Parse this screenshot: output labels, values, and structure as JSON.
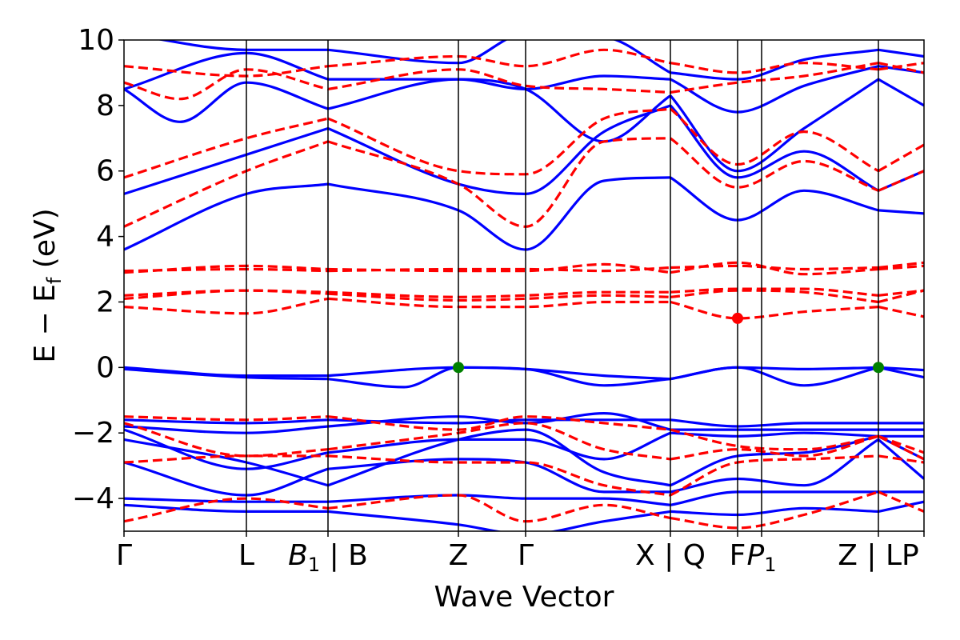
{
  "chart_data": {
    "type": "line",
    "xlabel": "Wave Vector",
    "ylabel": "E − E",
    "ylabel_sub": "f",
    "ylabel_unit": " (eV)",
    "ylim": [
      -5,
      10
    ],
    "yticks": [
      -4,
      -2,
      0,
      2,
      4,
      6,
      8,
      10
    ],
    "ytick_labels": [
      "−4",
      "−2",
      "0",
      "2",
      "4",
      "6",
      "8",
      "10"
    ],
    "xlim": [
      0,
      1
    ],
    "kpoints": [
      {
        "pos": 0.0,
        "label": "Γ"
      },
      {
        "pos": 0.153,
        "label": "L"
      },
      {
        "pos": 0.255,
        "label": "B",
        "sub": "1",
        "italic": true,
        "after": " | B"
      },
      {
        "pos": 0.418,
        "label": "Z"
      },
      {
        "pos": 0.502,
        "label": "Γ"
      },
      {
        "pos": 0.683,
        "label": "X | Q"
      },
      {
        "pos": 0.767,
        "label": "F"
      },
      {
        "pos": 0.797,
        "label": "P",
        "sub": "1",
        "italic": true
      },
      {
        "pos": 0.943,
        "label": "Z | LP"
      },
      {
        "pos": 1.0,
        "label": ""
      }
    ],
    "x_breaks": [
      0.255,
      0.683,
      0.943
    ],
    "grid": false,
    "colors": {
      "spin_up": "#0000ff",
      "spin_down": "#ff0000",
      "vbm": "#008000",
      "cbm": "#ff0000"
    },
    "series": [
      {
        "style": "solid",
        "color": "#0000ff",
        "bands": [
          {
            "x": [
              0,
              0.153,
              0.255,
              0.418,
              0.502,
              0.6,
              0.683,
              0.767,
              0.85,
              0.943,
              1.0
            ],
            "y": [
              0,
              -0.25,
              -0.25,
              0,
              -0.05,
              -0.25,
              -0.35,
              0,
              -0.05,
              0,
              -0.08
            ]
          },
          {
            "x": [
              0,
              0.153,
              0.255,
              0.35,
              0.418,
              0.502,
              0.6,
              0.683,
              0.767,
              0.85,
              0.943,
              1.0
            ],
            "y": [
              -0.05,
              -0.3,
              -0.35,
              -0.6,
              0,
              -0.05,
              -0.55,
              -0.35,
              0,
              -0.55,
              0,
              -0.3
            ]
          },
          {
            "x": [
              0,
              0.153,
              0.255,
              0.418,
              0.502,
              0.6,
              0.683,
              0.767,
              0.85,
              0.943,
              1.0
            ],
            "y": [
              3.6,
              5.3,
              5.6,
              4.8,
              3.6,
              5.7,
              5.8,
              4.5,
              5.4,
              4.8,
              4.7
            ]
          },
          {
            "x": [
              0,
              0.153,
              0.255,
              0.418,
              0.502,
              0.6,
              0.683,
              0.767,
              0.85,
              0.943,
              1.0
            ],
            "y": [
              5.3,
              6.5,
              7.3,
              5.6,
              5.3,
              7.2,
              8.0,
              5.8,
              6.6,
              5.4,
              6.0
            ]
          },
          {
            "x": [
              0,
              0.07,
              0.153,
              0.255,
              0.418,
              0.502,
              0.6,
              0.683,
              0.767,
              0.85,
              0.943,
              1.0
            ],
            "y": [
              8.5,
              7.5,
              8.7,
              7.9,
              8.8,
              8.5,
              6.9,
              8.3,
              6.0,
              7.3,
              8.8,
              8.0
            ]
          },
          {
            "x": [
              0,
              0.153,
              0.255,
              0.418,
              0.502,
              0.6,
              0.683,
              0.767,
              0.85,
              0.943,
              1.0
            ],
            "y": [
              8.5,
              9.6,
              8.8,
              8.8,
              8.5,
              8.9,
              8.8,
              7.8,
              8.6,
              9.2,
              9.0
            ]
          },
          {
            "x": [
              0,
              0.153,
              0.255,
              0.418,
              0.502,
              0.6,
              0.683,
              0.767,
              0.85,
              0.943,
              1.0
            ],
            "y": [
              10.2,
              9.7,
              9.7,
              9.3,
              10.2,
              10.1,
              9.0,
              8.8,
              9.4,
              9.7,
              9.5
            ]
          },
          {
            "x": [
              0,
              0.153,
              0.255,
              0.418,
              0.502,
              0.6,
              0.683,
              0.767,
              0.85,
              0.943,
              1.0
            ],
            "y": [
              -1.6,
              -1.7,
              -1.6,
              -1.7,
              -1.6,
              -1.6,
              -1.6,
              -1.8,
              -1.7,
              -1.7,
              -1.7
            ]
          },
          {
            "x": [
              0,
              0.153,
              0.255,
              0.418,
              0.502,
              0.6,
              0.683,
              0.767,
              0.85,
              0.943,
              1.0
            ],
            "y": [
              -1.8,
              -2.0,
              -1.8,
              -1.5,
              -1.7,
              -1.4,
              -1.9,
              -1.9,
              -1.9,
              -1.9,
              -1.9
            ]
          },
          {
            "x": [
              0,
              0.153,
              0.255,
              0.418,
              0.502,
              0.6,
              0.683,
              0.767,
              0.85,
              0.943,
              1.0
            ],
            "y": [
              -1.9,
              -3.1,
              -2.6,
              -2.2,
              -2.2,
              -2.8,
              -2.0,
              -2.1,
              -2.0,
              -2.1,
              -2.1
            ]
          },
          {
            "x": [
              0,
              0.153,
              0.255,
              0.418,
              0.502,
              0.6,
              0.683,
              0.767,
              0.85,
              0.943,
              1.0
            ],
            "y": [
              -2.2,
              -2.9,
              -3.6,
              -2.2,
              -1.9,
              -3.2,
              -3.6,
              -2.7,
              -2.6,
              -2.1,
              -2.8
            ]
          },
          {
            "x": [
              0,
              0.153,
              0.255,
              0.418,
              0.502,
              0.6,
              0.683,
              0.767,
              0.85,
              0.943,
              1.0
            ],
            "y": [
              -2.9,
              -3.9,
              -3.1,
              -2.8,
              -2.9,
              -3.8,
              -3.8,
              -3.4,
              -3.6,
              -2.2,
              -3.4
            ]
          },
          {
            "x": [
              0,
              0.153,
              0.255,
              0.418,
              0.502,
              0.6,
              0.683,
              0.767,
              0.85,
              0.943,
              1.0
            ],
            "y": [
              -4.0,
              -4.1,
              -4.1,
              -3.9,
              -4.0,
              -4.0,
              -4.2,
              -3.8,
              -3.8,
              -3.8,
              -3.8
            ]
          },
          {
            "x": [
              0,
              0.153,
              0.255,
              0.418,
              0.502,
              0.6,
              0.683,
              0.767,
              0.85,
              0.943,
              1.0
            ],
            "y": [
              -4.2,
              -4.4,
              -4.4,
              -4.8,
              -5.1,
              -4.7,
              -4.4,
              -4.5,
              -4.3,
              -4.4,
              -4.1
            ]
          }
        ]
      },
      {
        "style": "dashed",
        "color": "#ff0000",
        "bands": [
          {
            "x": [
              0,
              0.153,
              0.255,
              0.418,
              0.502,
              0.6,
              0.683,
              0.767,
              0.85,
              0.943,
              1.0
            ],
            "y": [
              1.85,
              1.65,
              2.1,
              1.85,
              1.85,
              2.0,
              2.0,
              1.5,
              1.7,
              1.85,
              1.55
            ]
          },
          {
            "x": [
              0,
              0.153,
              0.255,
              0.418,
              0.502,
              0.6,
              0.683,
              0.767,
              0.85,
              0.943,
              1.0
            ],
            "y": [
              2.1,
              2.35,
              2.25,
              2.05,
              2.1,
              2.2,
              2.15,
              2.35,
              2.3,
              2.0,
              2.35
            ]
          },
          {
            "x": [
              0,
              0.153,
              0.255,
              0.418,
              0.502,
              0.6,
              0.683,
              0.767,
              0.85,
              0.943,
              1.0
            ],
            "y": [
              2.2,
              2.35,
              2.3,
              2.15,
              2.2,
              2.3,
              2.3,
              2.4,
              2.4,
              2.2,
              2.35
            ]
          },
          {
            "x": [
              0,
              0.153,
              0.255,
              0.418,
              0.502,
              0.6,
              0.683,
              0.767,
              0.85,
              0.943,
              1.0
            ],
            "y": [
              2.9,
              3.1,
              3.0,
              2.95,
              2.95,
              3.15,
              2.9,
              3.2,
              2.85,
              3.0,
              3.1
            ]
          },
          {
            "x": [
              0,
              0.153,
              0.255,
              0.418,
              0.502,
              0.6,
              0.683,
              0.767,
              0.85,
              0.943,
              1.0
            ],
            "y": [
              2.95,
              3.0,
              2.95,
              3.0,
              3.0,
              2.95,
              3.05,
              3.1,
              3.0,
              3.05,
              3.2
            ]
          },
          {
            "x": [
              0,
              0.153,
              0.255,
              0.418,
              0.502,
              0.6,
              0.683,
              0.767,
              0.85,
              0.943,
              1.0
            ],
            "y": [
              4.3,
              6.0,
              6.9,
              5.6,
              4.3,
              6.9,
              7.0,
              5.5,
              6.3,
              5.4,
              6.0
            ]
          },
          {
            "x": [
              0,
              0.153,
              0.255,
              0.418,
              0.502,
              0.6,
              0.683,
              0.767,
              0.85,
              0.943,
              1.0
            ],
            "y": [
              5.8,
              7.0,
              7.6,
              6.0,
              5.9,
              7.6,
              7.9,
              6.2,
              7.2,
              6.0,
              6.8
            ]
          },
          {
            "x": [
              0,
              0.07,
              0.153,
              0.255,
              0.418,
              0.502,
              0.6,
              0.683,
              0.767,
              0.85,
              0.943,
              1.0
            ],
            "y": [
              8.7,
              8.2,
              9.1,
              8.5,
              9.1,
              8.6,
              8.5,
              8.4,
              8.7,
              8.9,
              9.3,
              9.0
            ]
          },
          {
            "x": [
              0,
              0.153,
              0.255,
              0.418,
              0.502,
              0.6,
              0.683,
              0.767,
              0.85,
              0.943,
              1.0
            ],
            "y": [
              9.2,
              8.9,
              9.2,
              9.5,
              9.2,
              9.7,
              9.3,
              9.0,
              9.3,
              9.1,
              9.3
            ]
          },
          {
            "x": [
              0,
              0.153,
              0.255,
              0.418,
              0.502,
              0.6,
              0.683,
              0.767,
              0.85,
              0.943,
              1.0
            ],
            "y": [
              -1.5,
              -1.6,
              -1.5,
              -1.9,
              -1.5,
              -1.7,
              -1.9,
              -2.4,
              -2.5,
              -2.1,
              -2.6
            ]
          },
          {
            "x": [
              0,
              0.153,
              0.255,
              0.418,
              0.502,
              0.6,
              0.683,
              0.767,
              0.85,
              0.943,
              1.0
            ],
            "y": [
              -1.7,
              -2.7,
              -2.5,
              -2.0,
              -1.7,
              -2.5,
              -2.8,
              -2.5,
              -2.7,
              -2.1,
              -2.8
            ]
          },
          {
            "x": [
              0,
              0.153,
              0.255,
              0.418,
              0.502,
              0.6,
              0.683,
              0.767,
              0.85,
              0.943,
              1.0
            ],
            "y": [
              -2.9,
              -2.7,
              -2.7,
              -2.9,
              -2.9,
              -3.6,
              -3.9,
              -2.9,
              -2.8,
              -2.7,
              -2.9
            ]
          },
          {
            "x": [
              0,
              0.153,
              0.255,
              0.418,
              0.502,
              0.6,
              0.683,
              0.767,
              0.85,
              0.943,
              1.0
            ],
            "y": [
              -4.7,
              -4.0,
              -4.3,
              -3.9,
              -4.7,
              -4.2,
              -4.6,
              -4.9,
              -4.5,
              -3.8,
              -4.4
            ]
          }
        ]
      }
    ],
    "markers": [
      {
        "x": 0.418,
        "y": 0.0,
        "color": "#008000",
        "kind": "vbm"
      },
      {
        "x": 0.943,
        "y": 0.0,
        "color": "#008000",
        "kind": "vbm"
      },
      {
        "x": 0.767,
        "y": 1.5,
        "color": "#ff0000",
        "kind": "cbm"
      }
    ]
  }
}
